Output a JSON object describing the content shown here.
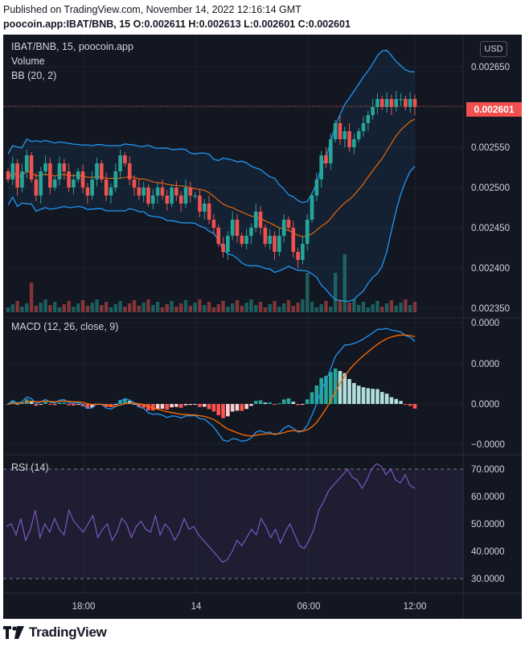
{
  "header": {
    "published": "Published on TradingView.com, November 14, 2022 12:16:14 GMT",
    "ohlc": "poocoin.app:IBAT/BNB, 15  O:0.002611  H:0.002613  L:0.002601  C:0.002601"
  },
  "legend": {
    "symbol": "IBAT/BNB, 15, poocoin.app",
    "volume": "Volume",
    "bb": "BB (20, 2)",
    "macd": "MACD (12, 26, close, 9)",
    "rsi": "RSI (14)"
  },
  "currency": "USD",
  "last_price": "0.002601",
  "footer": {
    "brand": "TradingView"
  },
  "colors": {
    "bg": "#131722",
    "up": "#26a69a",
    "down": "#ef5350",
    "bb_band": "#2196f3",
    "bb_basis": "#ff6d00",
    "rsi": "#7e57c2"
  },
  "chart_data": [
    {
      "type": "candlestick",
      "title": "IBAT/BNB, 15, poocoin.app",
      "x_ticks": [
        "18:00",
        "14",
        "06:00",
        "12:00"
      ],
      "y_ticks": [
        "0.002650",
        "0.002600",
        "0.002550",
        "0.002500",
        "0.002450",
        "0.002400",
        "0.002350"
      ],
      "ylim": [
        0.002345,
        0.00268
      ],
      "close": [
        0.00251,
        0.00253,
        0.0025,
        0.00252,
        0.00254,
        0.00251,
        0.00249,
        0.00252,
        0.00253,
        0.0025,
        0.00251,
        0.00253,
        0.00252,
        0.0025,
        0.00251,
        0.00252,
        0.0025,
        0.00249,
        0.00251,
        0.00253,
        0.00251,
        0.00249,
        0.0025,
        0.00252,
        0.00254,
        0.00253,
        0.00251,
        0.0025,
        0.00249,
        0.0025,
        0.00248,
        0.00249,
        0.0025,
        0.00249,
        0.00248,
        0.0025,
        0.00249,
        0.00248,
        0.0025,
        0.00249,
        0.00249,
        0.00247,
        0.00248,
        0.00246,
        0.00245,
        0.00243,
        0.00242,
        0.00244,
        0.00246,
        0.00244,
        0.00243,
        0.00244,
        0.00245,
        0.00247,
        0.00245,
        0.00243,
        0.00244,
        0.00242,
        0.00244,
        0.00246,
        0.00245,
        0.00242,
        0.00241,
        0.00243,
        0.00246,
        0.00249,
        0.00251,
        0.00254,
        0.00253,
        0.00256,
        0.00258,
        0.00256,
        0.00257,
        0.00255,
        0.00256,
        null,
        null,
        null,
        null,
        0.00261,
        0.0026,
        0.00261,
        0.0026,
        0.00261,
        0.00261,
        0.0026,
        0.00261,
        0.0026
      ],
      "bb_upper_range": [
        0.00253,
        0.00266
      ],
      "bb_lower_range": [
        0.002365,
        0.0025
      ],
      "volume_note": "bars colored by candle direction"
    },
    {
      "type": "line",
      "title": "MACD (12, 26, close, 9)",
      "y_ticks": [
        "0.0000",
        "0.0000",
        "0.0000",
        "−0.0000"
      ],
      "series": [
        {
          "name": "MACD"
        },
        {
          "name": "Signal"
        },
        {
          "name": "Histogram"
        }
      ]
    },
    {
      "type": "line",
      "title": "RSI (14)",
      "y_ticks": [
        "70.0000",
        "60.0000",
        "50.0000",
        "40.0000",
        "30.0000"
      ],
      "ylim": [
        25,
        75
      ],
      "bands": [
        30,
        70
      ],
      "values": [
        49,
        50,
        46,
        52,
        44,
        48,
        55,
        45,
        50,
        47,
        52,
        48,
        46,
        55,
        51,
        49,
        47,
        50,
        53,
        45,
        48,
        50,
        44,
        47,
        52,
        50,
        45,
        49,
        51,
        48,
        47,
        53,
        46,
        50,
        48,
        44,
        47,
        52,
        48,
        49,
        46,
        44,
        42,
        40,
        38,
        36,
        37,
        40,
        44,
        42,
        45,
        48,
        46,
        52,
        49,
        45,
        48,
        43,
        47,
        50,
        46,
        42,
        41,
        44,
        48,
        55,
        58,
        62,
        64,
        66,
        68,
        70,
        67,
        66,
        63,
        66,
        70,
        72,
        71,
        68,
        70,
        66,
        65,
        68,
        64,
        63
      ],
      "series": [
        {
          "name": "RSI"
        }
      ]
    }
  ]
}
